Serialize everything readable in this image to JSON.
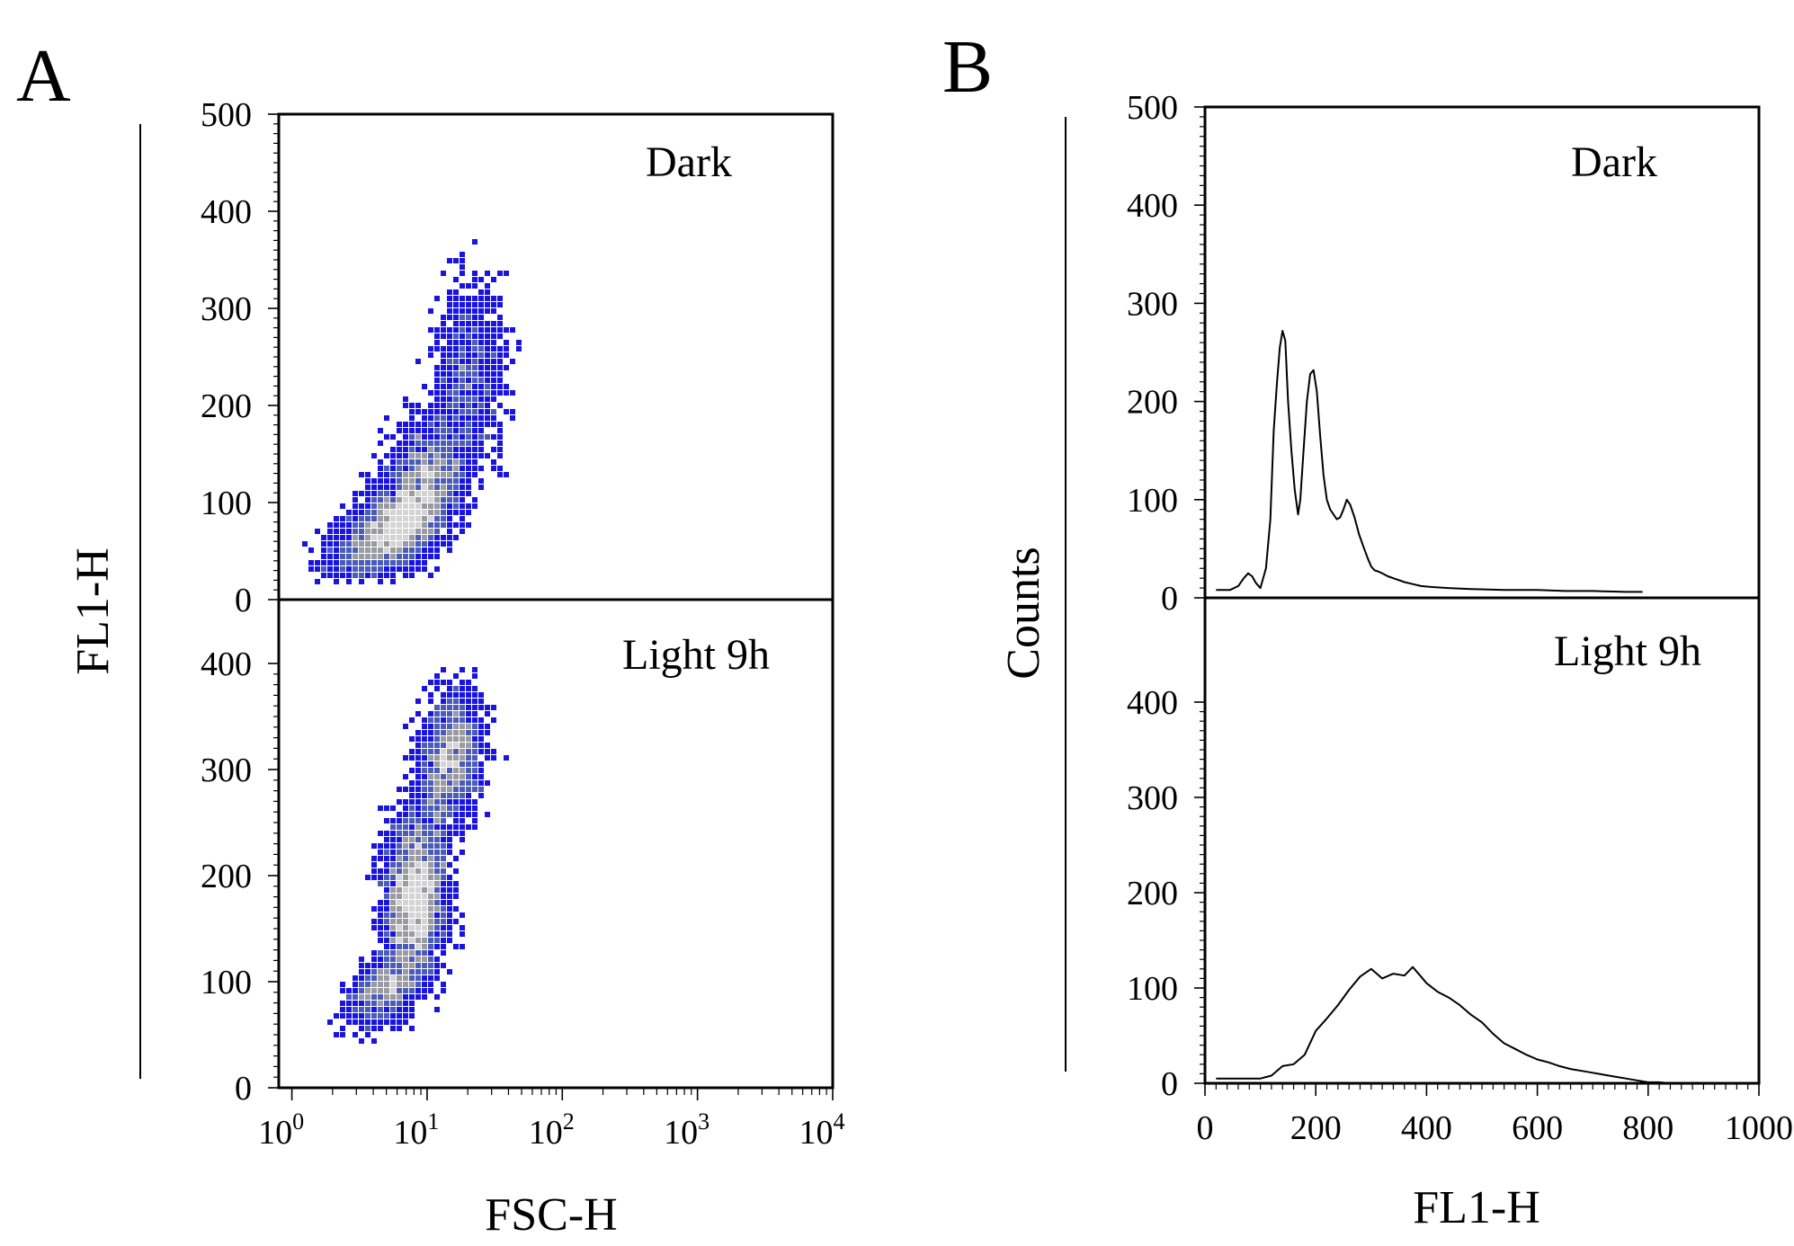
{
  "figure": {
    "panel_a_letter": "A",
    "panel_b_letter": "B"
  },
  "colors": {
    "density_low": "#1a14e0",
    "density_mid": "#4a5cb8",
    "density_high": "#9a9aa2",
    "density_peak": "#d4d4d4",
    "line": "#000000"
  },
  "chart_data": [
    {
      "type": "scatter",
      "panel": "A",
      "xlabel": "FSC-H",
      "ylabel": "FL1-H",
      "x_scale": "log",
      "xlim": [
        0.8,
        10000
      ],
      "x_tick_labels": [
        {
          "value": 1,
          "base": "10",
          "exp": "0"
        },
        {
          "value": 10,
          "base": "10",
          "exp": "1"
        },
        {
          "value": 100,
          "base": "10",
          "exp": "2"
        },
        {
          "value": 1000,
          "base": "10",
          "exp": "3"
        },
        {
          "value": 10000,
          "base": "10",
          "exp": "4"
        }
      ],
      "subplots": [
        {
          "label": "Dark",
          "ylim": [
            0,
            500
          ],
          "y_ticks": [
            "500",
            "400",
            "300",
            "200",
            "100",
            "0"
          ],
          "y_tick_values": [
            500,
            400,
            300,
            200,
            100,
            0
          ],
          "density_clusters": [
            {
              "x_log_center": 0.72,
              "y_center": 70,
              "x_log_sd": 0.3,
              "y_sd": 28,
              "weight": 0.45
            },
            {
              "x_log_center": 0.98,
              "y_center": 120,
              "x_log_sd": 0.22,
              "y_sd": 45,
              "weight": 0.35
            },
            {
              "x_log_center": 1.3,
              "y_center": 230,
              "x_log_sd": 0.2,
              "y_sd": 65,
              "weight": 0.2
            }
          ],
          "x_range_log": [
            -0.05,
            1.75
          ],
          "y_range": [
            20,
            390
          ]
        },
        {
          "label": "Light 9h",
          "ylim": [
            0,
            450
          ],
          "y_ticks": [
            "400",
            "300",
            "200",
            "100",
            "0"
          ],
          "y_tick_values": [
            400,
            300,
            200,
            100,
            0
          ],
          "density_clusters": [
            {
              "x_log_center": 0.92,
              "y_center": 180,
              "x_log_sd": 0.16,
              "y_sd": 55,
              "weight": 0.55
            },
            {
              "x_log_center": 1.18,
              "y_center": 310,
              "x_log_sd": 0.17,
              "y_sd": 45,
              "weight": 0.3
            },
            {
              "x_log_center": 0.7,
              "y_center": 95,
              "x_log_sd": 0.2,
              "y_sd": 22,
              "weight": 0.15
            }
          ],
          "x_range_log": [
            -0.05,
            1.8
          ],
          "y_range": [
            10,
            400
          ]
        }
      ]
    },
    {
      "type": "line",
      "panel": "B",
      "xlabel": "FL1-H",
      "ylabel": "Counts",
      "xlim": [
        0,
        1000
      ],
      "x_ticks": [
        "0",
        "200",
        "400",
        "600",
        "800",
        "1000"
      ],
      "x_tick_values": [
        0,
        200,
        400,
        600,
        800,
        1000
      ],
      "subplots": [
        {
          "label": "Dark",
          "ylim": [
            0,
            500
          ],
          "y_ticks": [
            "500",
            "400",
            "300",
            "200",
            "100",
            "0"
          ],
          "y_tick_values": [
            500,
            400,
            300,
            200,
            100,
            0
          ],
          "x": [
            20,
            45,
            60,
            70,
            78,
            85,
            92,
            100,
            110,
            118,
            124,
            130,
            135,
            140,
            145,
            150,
            156,
            162,
            168,
            172,
            178,
            184,
            190,
            196,
            202,
            208,
            214,
            220,
            226,
            232,
            238,
            244,
            250,
            256,
            262,
            270,
            278,
            286,
            294,
            300,
            306,
            312,
            320,
            330,
            340,
            350,
            360,
            375,
            390,
            410,
            440,
            480,
            540,
            600,
            650,
            700,
            760,
            790
          ],
          "y": [
            8,
            8,
            12,
            20,
            25,
            22,
            15,
            10,
            30,
            80,
            170,
            220,
            255,
            272,
            262,
            200,
            150,
            110,
            85,
            100,
            150,
            200,
            228,
            232,
            210,
            165,
            125,
            100,
            90,
            85,
            80,
            82,
            90,
            100,
            95,
            82,
            65,
            52,
            40,
            32,
            28,
            27,
            25,
            22,
            20,
            18,
            16,
            14,
            12,
            11,
            10,
            9,
            8,
            8,
            7,
            7,
            6,
            6
          ]
        },
        {
          "label": "Light 9h",
          "ylim": [
            0,
            500
          ],
          "y_ticks": [
            "400",
            "300",
            "200",
            "100",
            "0"
          ],
          "y_tick_values": [
            400,
            300,
            200,
            100,
            0
          ],
          "x": [
            20,
            50,
            80,
            100,
            120,
            140,
            160,
            180,
            200,
            220,
            240,
            260,
            280,
            300,
            320,
            340,
            360,
            375,
            390,
            400,
            420,
            440,
            460,
            480,
            500,
            520,
            540,
            560,
            580,
            600,
            620,
            640,
            660,
            680,
            700,
            720,
            740,
            760,
            780,
            800,
            820,
            840,
            860,
            880,
            900,
            920,
            940,
            960,
            980
          ],
          "y": [
            5,
            5,
            5,
            5,
            8,
            18,
            20,
            30,
            55,
            68,
            82,
            98,
            112,
            120,
            110,
            115,
            113,
            122,
            112,
            105,
            96,
            90,
            82,
            72,
            64,
            52,
            42,
            36,
            30,
            25,
            22,
            18,
            15,
            13,
            11,
            9,
            7,
            5,
            3,
            1,
            1,
            0,
            0,
            0,
            0,
            0,
            0,
            0,
            0
          ]
        }
      ]
    }
  ]
}
